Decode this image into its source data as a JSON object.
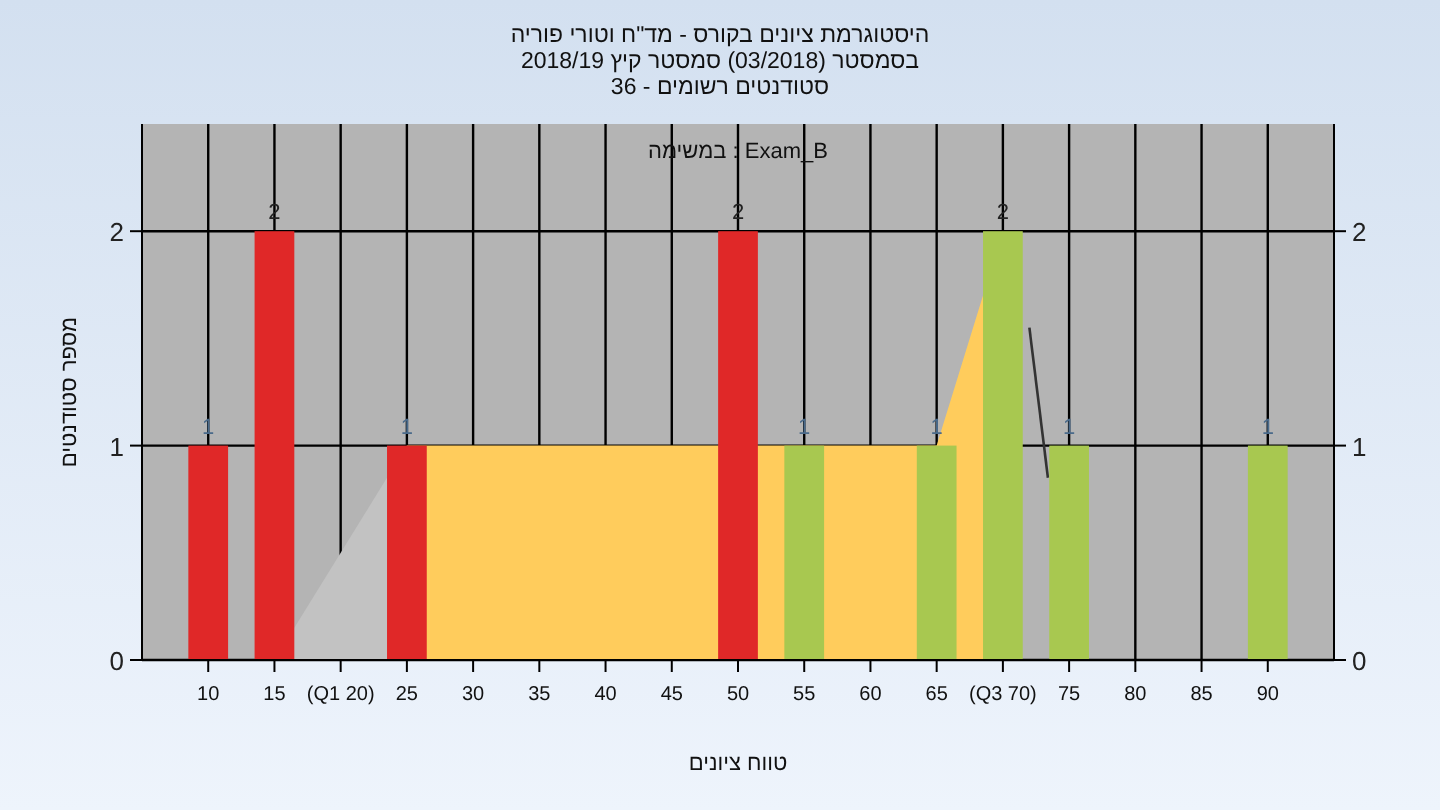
{
  "chart_data": {
    "type": "bar",
    "title": "היסטוגרמת ציונים בקורס - מד\"ח וטורי פוריה",
    "subtitle": "בסמסטר (03/2018) סמסטר קיץ 2018/19\nסטודנטים רשומים - 36",
    "xlabel": "טווח ציונים",
    "ylabel": "מספר סטודנטים",
    "annotations": [
      "במשימה : Exam_B"
    ],
    "xlim": [
      5,
      95
    ],
    "xticks": [
      10,
      15,
      {
        "value": 20,
        "label": "(Q1 20)"
      },
      25,
      30,
      35,
      40,
      45,
      50,
      55,
      60,
      65,
      {
        "value": 70,
        "label": "(Q3 70)"
      },
      75,
      80,
      85,
      90
    ],
    "ylim": [
      0,
      2.5
    ],
    "yticks": [
      0,
      1,
      2
    ],
    "y2lim": [
      0,
      2.5
    ],
    "y2ticks": [
      0,
      1,
      2
    ],
    "grid": true,
    "series": [
      {
        "type": "area",
        "color": "#c2c2c2",
        "x": [
          15,
          25
        ],
        "values": [
          0,
          1
        ]
      },
      {
        "type": "area",
        "color": "#ffcc5c",
        "x": [
          25,
          65,
          70
        ],
        "values": [
          1,
          1,
          2
        ]
      },
      {
        "type": "line",
        "color": "#333333",
        "x": [
          72,
          73.4
        ],
        "values": [
          1.55,
          0.85
        ]
      },
      {
        "x": [
          10,
          15,
          25,
          50,
          55,
          65,
          70,
          75,
          90
        ],
        "values": [
          1,
          2,
          1,
          2,
          1,
          1,
          2,
          1,
          1
        ],
        "colors": [
          "#e02828",
          "#e02828",
          "#e02828",
          "#e02828",
          "#a8c850",
          "#a8c850",
          "#a8c850",
          "#a8c850",
          "#a8c850"
        ],
        "value_labels": [
          "1",
          "2",
          "1",
          "2",
          "1",
          "1",
          "2",
          "1",
          "1"
        ]
      }
    ]
  }
}
